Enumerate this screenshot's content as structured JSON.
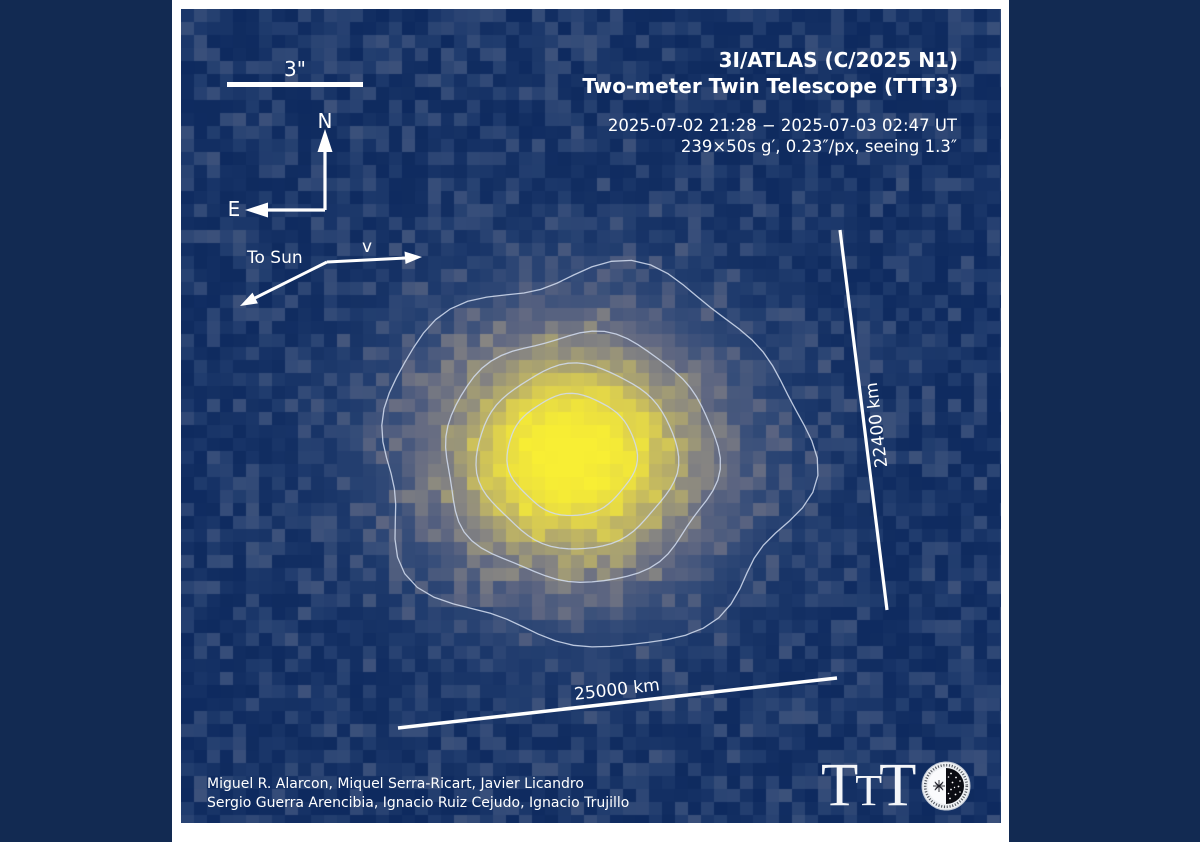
{
  "header": {
    "title_line1": "3I/ATLAS (C/2025 N1)",
    "title_line2": "Two-meter Twin Telescope (TTT3)",
    "obs_line1": "2025-07-02 21:28 − 2025-07-03 02:47 UT",
    "obs_line2": "239×50s g′, 0.23″/px, seeing 1.3″"
  },
  "annotations": {
    "scale_bar_label": "3\"",
    "compass_north": "N",
    "compass_east": "E",
    "sun_direction": "To Sun",
    "velocity": "v",
    "extent_vertical": "22400 km",
    "extent_horizontal": "25000 km"
  },
  "credits": {
    "line1": "Miguel R. Alarcon, Miquel Serra-Ricart, Javier Licandro",
    "line2": "Sergio Guerra Arencibia, Ignacio Ruiz Cejudo, Ignacio Trujillo"
  },
  "logo": {
    "letters": [
      "T",
      "T",
      "T"
    ]
  },
  "colors": {
    "page_background": "#122a52",
    "image_background": "#0d295e",
    "comet_core": "#f4e93c",
    "coma_gray": "#8a8f9f",
    "contour": "#d0dbee",
    "text": "#ffffff"
  }
}
